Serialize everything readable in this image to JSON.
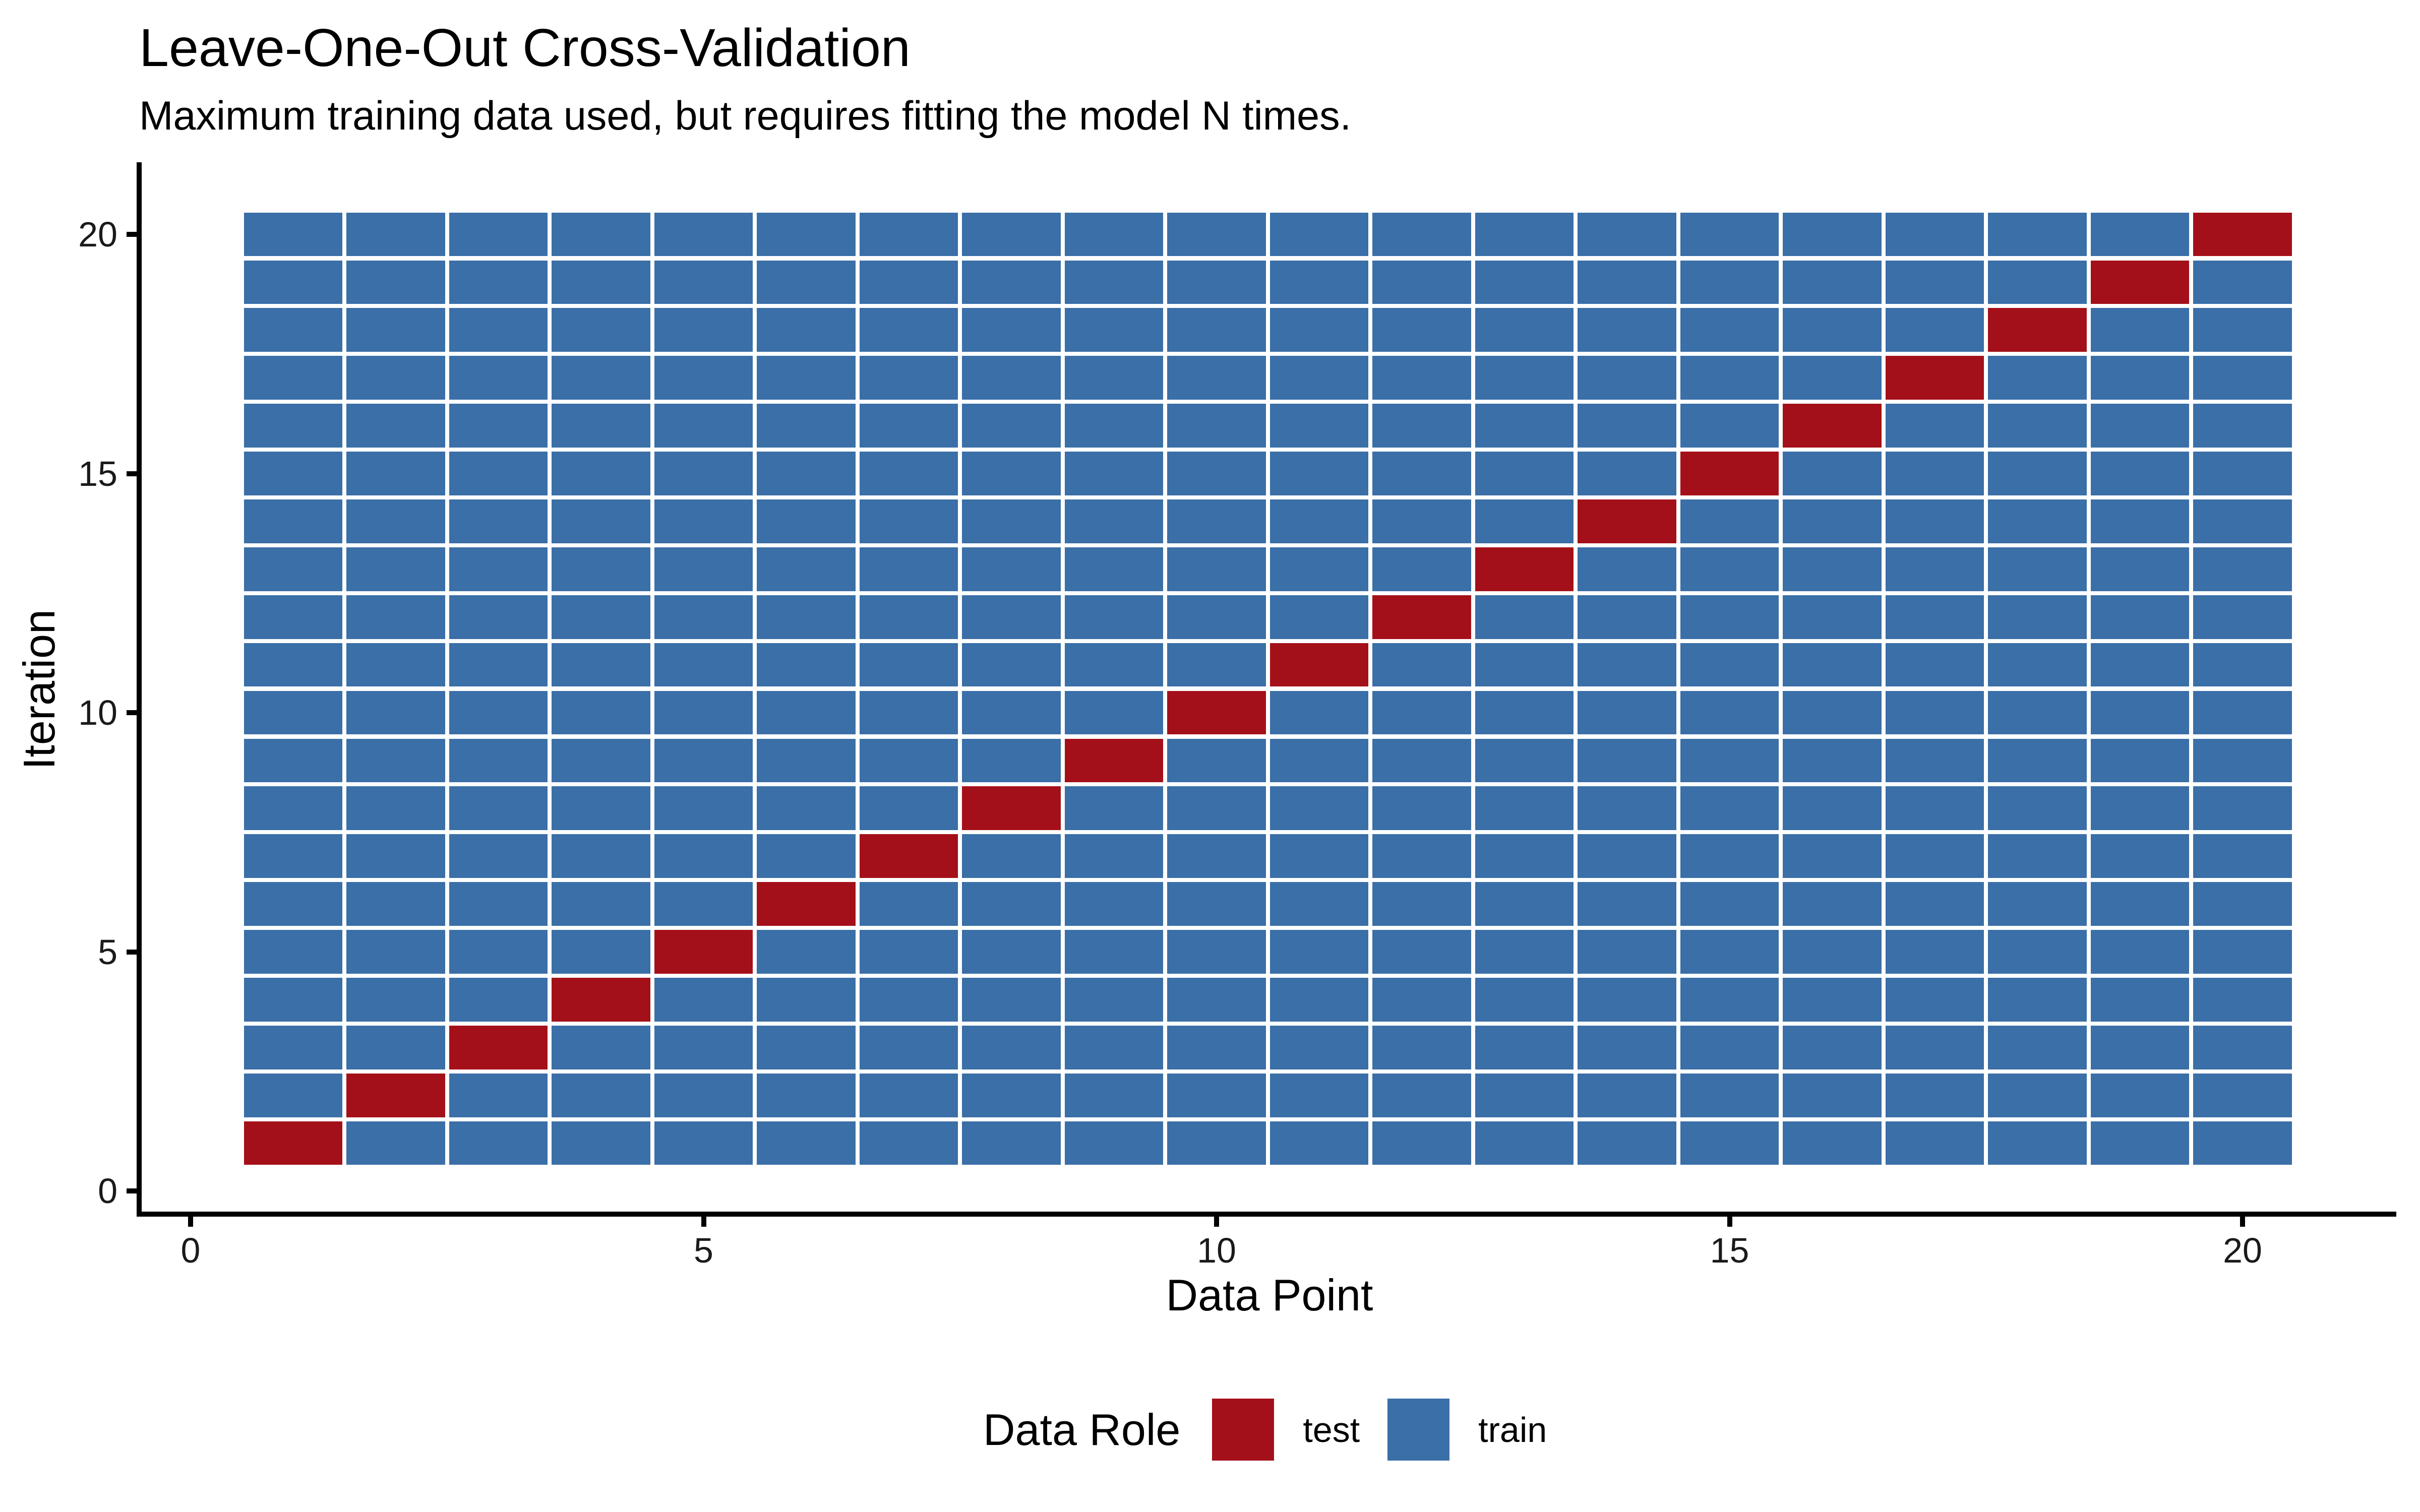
{
  "title": "Leave-One-Out Cross-Validation",
  "subtitle": "Maximum training data used, but requires fitting the model N times.",
  "chart_data": {
    "type": "heatmap",
    "title": "Leave-One-Out Cross-Validation",
    "subtitle": "Maximum training data used, but requires fitting the model N times.",
    "xlabel": "Data Point",
    "ylabel": "Iteration",
    "n_data_points": 20,
    "n_iterations": 20,
    "x_ticks": [
      0,
      5,
      10,
      15,
      20
    ],
    "y_ticks": [
      0,
      5,
      10,
      15,
      20
    ],
    "xlim": [
      -0.5,
      21.5
    ],
    "ylim": [
      -0.5,
      21.5
    ],
    "grid": false,
    "axis_style": "classic L-shaped black axes with outward ticks, no gridlines, white background",
    "colors": {
      "test": "#A41019",
      "train": "#3A6FA8"
    },
    "cell_rule": "tile at (data_point j, iteration i) is 'test' when j == i, otherwise 'train'",
    "legend": {
      "title": "Data Role",
      "position": "bottom-center",
      "entries": [
        {
          "label": "test",
          "color": "#A41019"
        },
        {
          "label": "train",
          "color": "#3A6FA8"
        }
      ]
    },
    "iterations": [
      {
        "iteration": 1,
        "test_data_points": [
          1
        ]
      },
      {
        "iteration": 2,
        "test_data_points": [
          2
        ]
      },
      {
        "iteration": 3,
        "test_data_points": [
          3
        ]
      },
      {
        "iteration": 4,
        "test_data_points": [
          4
        ]
      },
      {
        "iteration": 5,
        "test_data_points": [
          5
        ]
      },
      {
        "iteration": 6,
        "test_data_points": [
          6
        ]
      },
      {
        "iteration": 7,
        "test_data_points": [
          7
        ]
      },
      {
        "iteration": 8,
        "test_data_points": [
          8
        ]
      },
      {
        "iteration": 9,
        "test_data_points": [
          9
        ]
      },
      {
        "iteration": 10,
        "test_data_points": [
          10
        ]
      },
      {
        "iteration": 11,
        "test_data_points": [
          11
        ]
      },
      {
        "iteration": 12,
        "test_data_points": [
          12
        ]
      },
      {
        "iteration": 13,
        "test_data_points": [
          13
        ]
      },
      {
        "iteration": 14,
        "test_data_points": [
          14
        ]
      },
      {
        "iteration": 15,
        "test_data_points": [
          15
        ]
      },
      {
        "iteration": 16,
        "test_data_points": [
          16
        ]
      },
      {
        "iteration": 17,
        "test_data_points": [
          17
        ]
      },
      {
        "iteration": 18,
        "test_data_points": [
          18
        ]
      },
      {
        "iteration": 19,
        "test_data_points": [
          19
        ]
      },
      {
        "iteration": 20,
        "test_data_points": [
          20
        ]
      }
    ]
  }
}
